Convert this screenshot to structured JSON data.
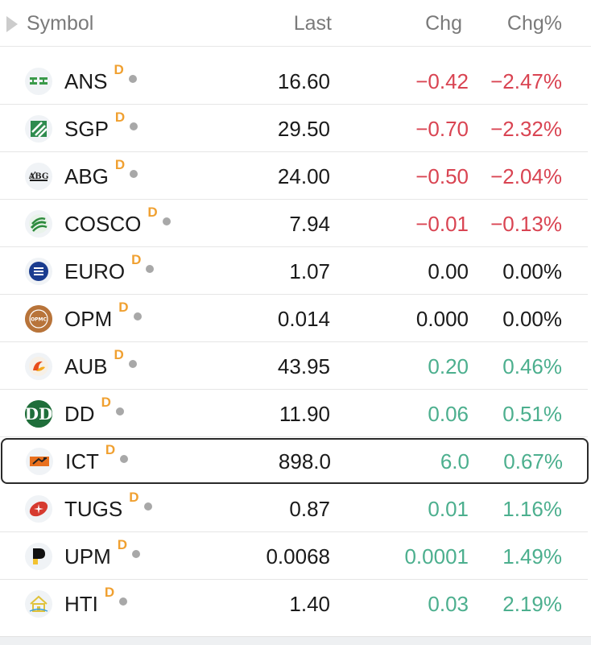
{
  "header": {
    "symbol_label": "Symbol",
    "last_label": "Last",
    "chg_label": "Chg",
    "chgp_label": "Chg%"
  },
  "colors": {
    "negative": "#d94452",
    "positive": "#4caf8e",
    "neutral": "#1a1a1a",
    "delay_badge": "#f0a030"
  },
  "rows": [
    {
      "symbol": "ANS",
      "badge": "D",
      "last": "16.60",
      "chg": "−0.42",
      "chgp": "−2.47%",
      "trend": "neg",
      "logo": "ans-logo-icon"
    },
    {
      "symbol": "SGP",
      "badge": "D",
      "last": "29.50",
      "chg": "−0.70",
      "chgp": "−2.32%",
      "trend": "neg",
      "logo": "sgp-logo-icon"
    },
    {
      "symbol": "ABG",
      "badge": "D",
      "last": "24.00",
      "chg": "−0.50",
      "chgp": "−2.04%",
      "trend": "neg",
      "logo": "abg-logo-icon"
    },
    {
      "symbol": "COSCO",
      "badge": "D",
      "last": "7.94",
      "chg": "−0.01",
      "chgp": "−0.13%",
      "trend": "neg",
      "logo": "cosco-logo-icon"
    },
    {
      "symbol": "EURO",
      "badge": "D",
      "last": "1.07",
      "chg": "0.00",
      "chgp": "0.00%",
      "trend": "neu",
      "logo": "euro-logo-icon"
    },
    {
      "symbol": "OPM",
      "badge": "D",
      "last": "0.014",
      "chg": "0.000",
      "chgp": "0.00%",
      "trend": "neu",
      "logo": "opm-logo-icon",
      "logo_text": "OPMC"
    },
    {
      "symbol": "AUB",
      "badge": "D",
      "last": "43.95",
      "chg": "0.20",
      "chgp": "0.46%",
      "trend": "pos",
      "logo": "aub-logo-icon"
    },
    {
      "symbol": "DD",
      "badge": "D",
      "last": "11.90",
      "chg": "0.06",
      "chgp": "0.51%",
      "trend": "pos",
      "logo": "dd-logo-icon"
    },
    {
      "symbol": "ICT",
      "badge": "D",
      "last": "898.0",
      "chg": "6.0",
      "chgp": "0.67%",
      "trend": "pos",
      "logo": "ict-logo-icon",
      "selected": true
    },
    {
      "symbol": "TUGS",
      "badge": "D",
      "last": "0.87",
      "chg": "0.01",
      "chgp": "1.16%",
      "trend": "pos",
      "logo": "tugs-logo-icon"
    },
    {
      "symbol": "UPM",
      "badge": "D",
      "last": "0.0068",
      "chg": "0.0001",
      "chgp": "1.49%",
      "trend": "pos",
      "logo": "upm-logo-icon"
    },
    {
      "symbol": "HTI",
      "badge": "D",
      "last": "1.40",
      "chg": "0.03",
      "chgp": "2.19%",
      "trend": "pos",
      "logo": "hti-logo-icon"
    }
  ]
}
